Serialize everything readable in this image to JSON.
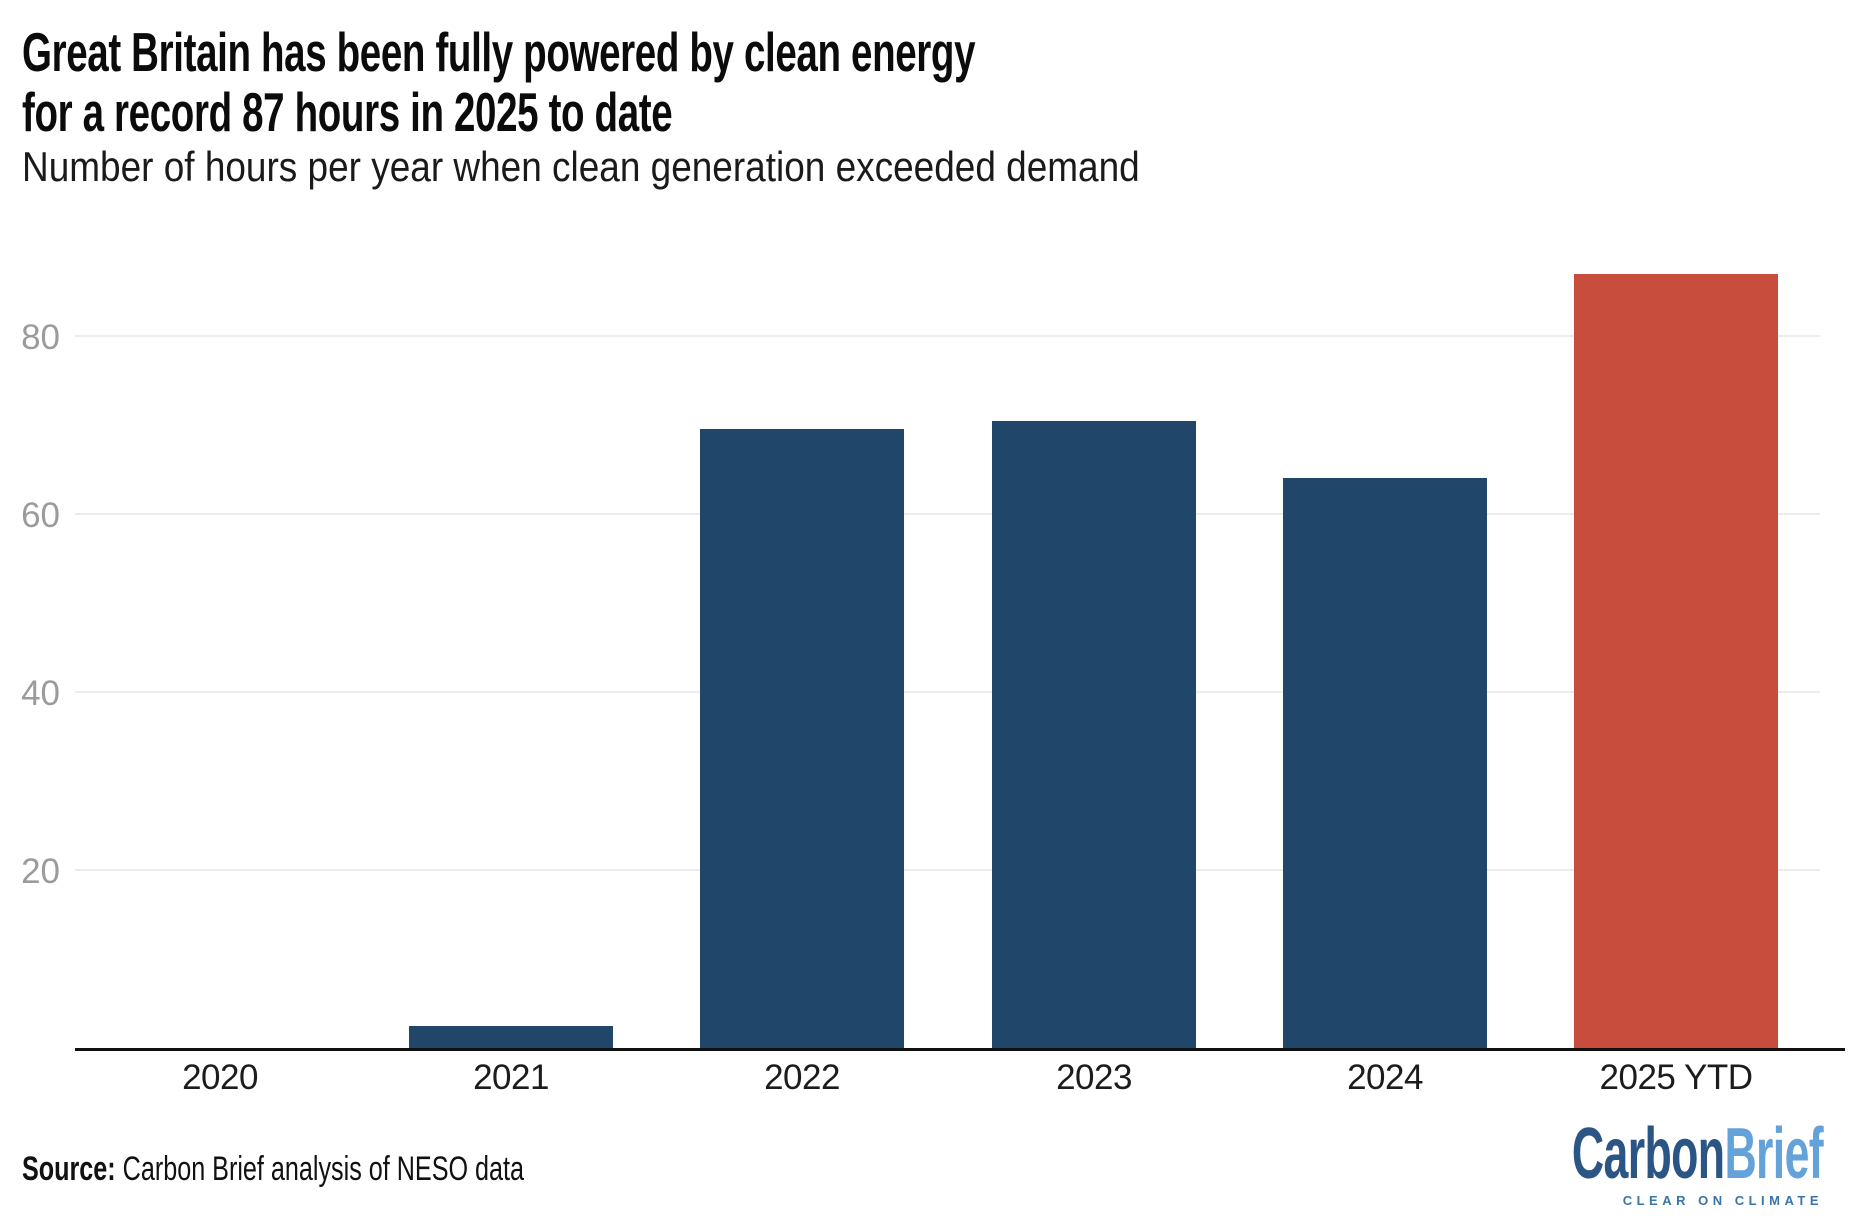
{
  "header": {
    "title_line1": "Great Britain has been fully powered by clean energy",
    "title_line2": "for a record 87 hours in 2025 to date",
    "subtitle": "Number of hours per year when clean generation exceeded demand"
  },
  "chart_data": {
    "type": "bar",
    "title": "Great Britain has been fully powered by clean energy for a record 87 hours in 2025 to date",
    "subtitle": "Number of hours per year when clean generation exceeded demand",
    "categories": [
      "2020",
      "2021",
      "2022",
      "2023",
      "2024",
      "2025 YTD"
    ],
    "values": [
      0,
      2.5,
      69.5,
      70.5,
      64,
      87
    ],
    "unit": "hours per year",
    "xlabel": "",
    "ylabel": "",
    "ylim": [
      0,
      90
    ],
    "yticks": [
      20,
      40,
      60,
      80
    ],
    "grid": "horizontal",
    "legend": "none",
    "bar_color": "#204669",
    "highlight_color": "#c94d3c",
    "highlight_category": "2025 YTD",
    "gridline_color": "#ececec",
    "axis_line_color": "#111111",
    "y_tick_label_color": "#9b9b9b",
    "x_tick_label_color": "#1c1c1c"
  },
  "footer": {
    "source_label": "Source:",
    "source_text": " Carbon Brief analysis of NESO data",
    "logo": {
      "part1": "Carbon",
      "part2": "Brief",
      "tagline": "CLEAR ON CLIMATE",
      "part1_color": "#2b5585",
      "part2_color": "#64a3da",
      "tagline_color": "#3a74ab"
    }
  }
}
